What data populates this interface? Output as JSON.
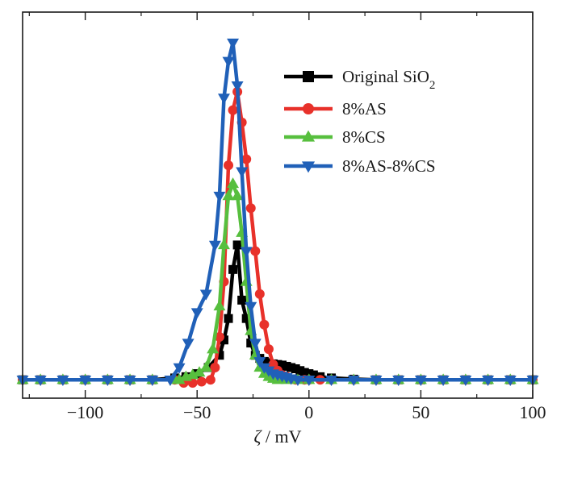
{
  "chart_data": {
    "type": "line",
    "title": "",
    "xlabel": "ζ / mV",
    "xlabel_symbol": "ζ",
    "xlabel_unit": " / mV",
    "ylabel": "",
    "xlim": [
      -128,
      100
    ],
    "ylim": [
      -0.03,
      0.6
    ],
    "x_ticks": [
      -100,
      -50,
      0,
      50,
      100
    ],
    "x_tick_labels": [
      "−100",
      "−50",
      "0",
      "50",
      "100"
    ],
    "y_ticks_shown": false,
    "grid": false,
    "legend_position": "top-right",
    "series": [
      {
        "name": "Original SiO2",
        "name_base": "Original SiO",
        "name_sub": "2",
        "color": "#000000",
        "marker": "square",
        "x": [
          -128,
          -120,
          -110,
          -100,
          -90,
          -80,
          -70,
          -60,
          -55,
          -50,
          -45,
          -40,
          -38,
          -36,
          -34,
          -32,
          -30,
          -28,
          -26,
          -24,
          -22,
          -20,
          -18,
          -16,
          -14,
          -12,
          -10,
          -8,
          -6,
          -4,
          -2,
          0,
          2,
          5,
          10,
          20,
          30,
          40,
          50,
          60,
          70,
          80,
          90,
          100
        ],
        "y": [
          0.0,
          0.0,
          0.0,
          0.0,
          0.0,
          0.0,
          0.0,
          0.003,
          0.005,
          0.01,
          0.02,
          0.04,
          0.065,
          0.1,
          0.18,
          0.22,
          0.13,
          0.1,
          0.06,
          0.04,
          0.035,
          0.03,
          0.028,
          0.026,
          0.025,
          0.024,
          0.022,
          0.02,
          0.018,
          0.015,
          0.012,
          0.01,
          0.008,
          0.005,
          0.003,
          0.001,
          0.0,
          0.0,
          0.0,
          0.0,
          0.0,
          0.0,
          0.0,
          0.0
        ]
      },
      {
        "name": "8%AS",
        "color": "#e8312a",
        "marker": "circle",
        "x": [
          -128,
          -120,
          -110,
          -100,
          -90,
          -80,
          -70,
          -60,
          -56,
          -52,
          -48,
          -44,
          -42,
          -40,
          -38,
          -36,
          -34,
          -32,
          -30,
          -28,
          -26,
          -24,
          -22,
          -20,
          -18,
          -16,
          -14,
          -12,
          -10,
          -6,
          -2,
          0,
          5,
          10,
          20,
          30,
          40,
          50,
          60,
          70,
          80,
          90,
          100
        ],
        "y": [
          0.0,
          0.0,
          0.0,
          0.0,
          0.0,
          0.0,
          0.0,
          0.0,
          -0.005,
          -0.005,
          -0.003,
          0.0,
          0.02,
          0.07,
          0.16,
          0.35,
          0.44,
          0.47,
          0.42,
          0.36,
          0.28,
          0.21,
          0.14,
          0.09,
          0.05,
          0.025,
          0.015,
          0.008,
          0.005,
          0.0,
          0.0,
          0.0,
          0.0,
          0.0,
          0.0,
          0.0,
          0.0,
          0.0,
          0.0,
          0.0,
          0.0,
          0.0,
          0.0
        ]
      },
      {
        "name": "8%CS",
        "color": "#57bf3e",
        "marker": "triangle-up",
        "x": [
          -128,
          -120,
          -110,
          -100,
          -90,
          -80,
          -70,
          -60,
          -58,
          -55,
          -52,
          -49,
          -46,
          -43,
          -40,
          -38,
          -36,
          -34,
          -32,
          -30,
          -28,
          -26,
          -24,
          -22,
          -20,
          -18,
          -16,
          -14,
          -10,
          -5,
          0,
          10,
          20,
          30,
          40,
          50,
          60,
          70,
          80,
          90,
          100
        ],
        "y": [
          0.0,
          0.0,
          0.0,
          0.0,
          0.0,
          0.0,
          0.0,
          0.0,
          0.0,
          0.005,
          0.008,
          0.012,
          0.02,
          0.05,
          0.12,
          0.22,
          0.3,
          0.32,
          0.3,
          0.24,
          0.16,
          0.08,
          0.04,
          0.02,
          0.01,
          0.005,
          0.002,
          0.0,
          0.0,
          0.0,
          0.0,
          0.0,
          0.0,
          0.0,
          0.0,
          0.0,
          0.0,
          0.0,
          0.0,
          0.0,
          0.0
        ]
      },
      {
        "name": "8%AS-8%CS",
        "color": "#2060b8",
        "marker": "triangle-down",
        "x": [
          -128,
          -120,
          -110,
          -100,
          -90,
          -80,
          -70,
          -62,
          -58,
          -54,
          -50,
          -46,
          -42,
          -40,
          -38,
          -36,
          -34,
          -32,
          -30,
          -28,
          -26,
          -24,
          -22,
          -20,
          -18,
          -16,
          -14,
          -12,
          -10,
          -8,
          -5,
          0,
          10,
          20,
          30,
          40,
          50,
          60,
          70,
          80,
          90,
          100
        ],
        "y": [
          0.0,
          0.0,
          0.0,
          0.0,
          0.0,
          0.0,
          0.0,
          0.0,
          0.02,
          0.06,
          0.11,
          0.14,
          0.22,
          0.3,
          0.46,
          0.52,
          0.55,
          0.48,
          0.34,
          0.21,
          0.12,
          0.06,
          0.03,
          0.02,
          0.015,
          0.01,
          0.008,
          0.006,
          0.004,
          0.002,
          0.0,
          0.0,
          0.0,
          0.0,
          0.0,
          0.0,
          0.0,
          0.0,
          0.0,
          0.0,
          0.0,
          0.0
        ]
      }
    ]
  }
}
